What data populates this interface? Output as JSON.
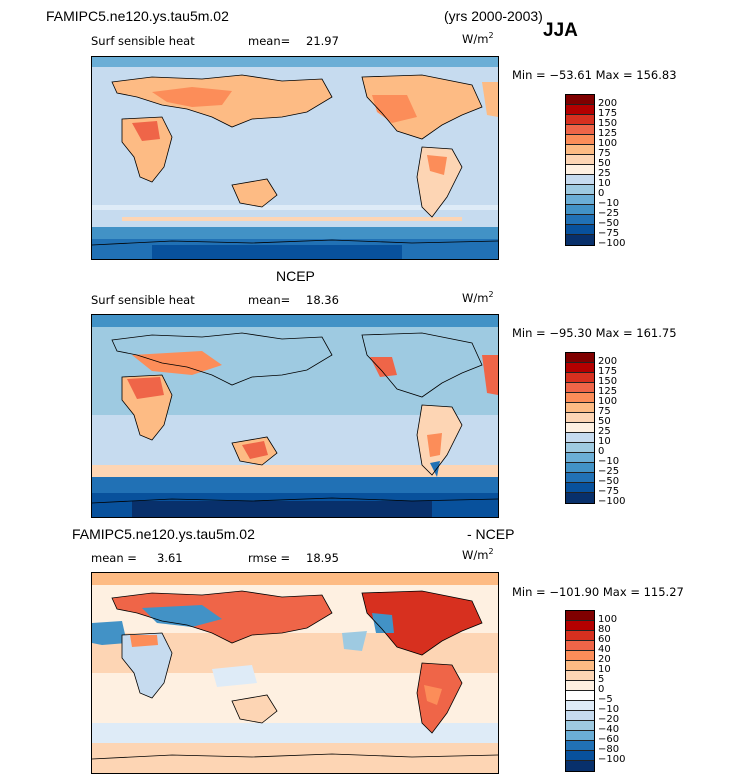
{
  "header": {
    "case_name": "FAMIPC5.ne120.ys.tau5m.02",
    "years": "(yrs 2000-2003)",
    "season": "JJA"
  },
  "panels": [
    {
      "id": "model",
      "heading": "",
      "variable": "Surf sensible heat",
      "stat1_label": "mean=",
      "stat1_value": "21.97",
      "stat2_label": "",
      "stat2_value": "",
      "units": "W/m",
      "units_exp": "2",
      "minmax": "Min = −53.61 Max = 156.83",
      "colors": [
        "#7f0000",
        "#b30000",
        "#d7301f",
        "#ef6548",
        "#fc8d59",
        "#fdbb84",
        "#fdd5b4",
        "#fef0e1",
        "#c6dbef",
        "#9ecae1",
        "#6baed6",
        "#4292c6",
        "#2171b5",
        "#08519c",
        "#08306b"
      ],
      "ticks": [
        "200",
        "175",
        "150",
        "125",
        "100",
        "75",
        "50",
        "25",
        "10",
        "0",
        "−10",
        "−25",
        "−50",
        "−75",
        "−100"
      ]
    },
    {
      "id": "obs",
      "heading": "NCEP",
      "variable": "Surf sensible heat",
      "stat1_label": "mean=",
      "stat1_value": "18.36",
      "stat2_label": "",
      "stat2_value": "",
      "units": "W/m",
      "units_exp": "2",
      "minmax": "Min = −95.30 Max = 161.75",
      "colors": [
        "#7f0000",
        "#b30000",
        "#d7301f",
        "#ef6548",
        "#fc8d59",
        "#fdbb84",
        "#fdd5b4",
        "#fef0e1",
        "#c6dbef",
        "#9ecae1",
        "#6baed6",
        "#4292c6",
        "#2171b5",
        "#08519c",
        "#08306b"
      ],
      "ticks": [
        "200",
        "175",
        "150",
        "125",
        "100",
        "75",
        "50",
        "25",
        "10",
        "0",
        "−10",
        "−25",
        "−50",
        "−75",
        "−100"
      ]
    },
    {
      "id": "diff",
      "heading_left": "FAMIPC5.ne120.ys.tau5m.02",
      "heading_right": "- NCEP",
      "variable": "",
      "stat1_label": "mean =",
      "stat1_value": "3.61",
      "stat2_label": "rmse =",
      "stat2_value": "18.95",
      "units": "W/m",
      "units_exp": "2",
      "minmax": "Min = −101.90 Max = 115.27",
      "colors": [
        "#7f0000",
        "#b30000",
        "#d7301f",
        "#ef6548",
        "#fc8d59",
        "#fdbb84",
        "#fdd5b4",
        "#fef0e1",
        "#ffffff",
        "#deebf7",
        "#c6dbef",
        "#9ecae1",
        "#6baed6",
        "#2171b5",
        "#08519c",
        "#08306b"
      ],
      "ticks": [
        "100",
        "80",
        "60",
        "40",
        "20",
        "10",
        "5",
        "0",
        "−5",
        "−10",
        "−20",
        "−40",
        "−60",
        "−80",
        "−100"
      ]
    }
  ]
}
